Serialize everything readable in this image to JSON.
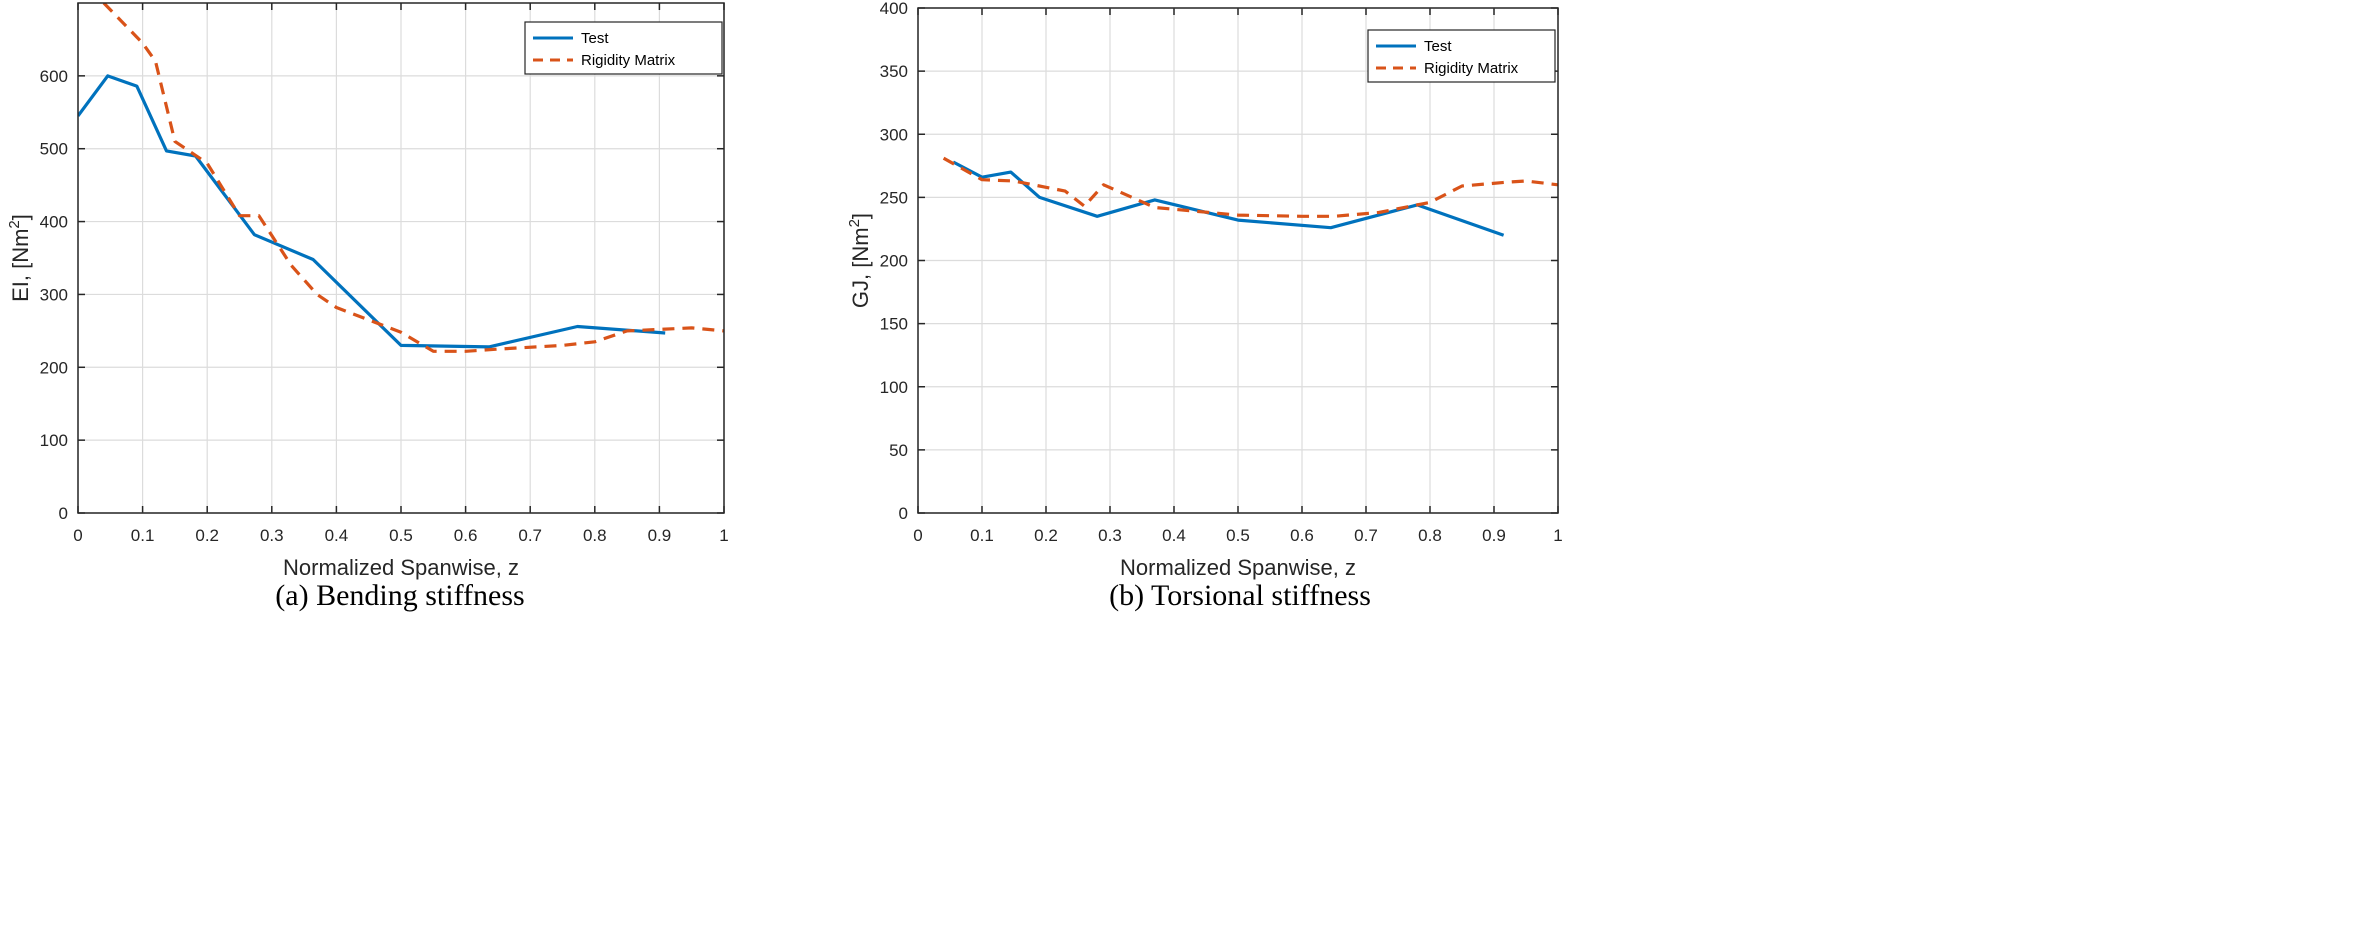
{
  "chart_data": [
    {
      "type": "line",
      "caption": "(a) Bending stiffness",
      "xlabel": "Normalized Spanwise, z",
      "ylabel": "EI, [Nm",
      "ylabel_sup": "2",
      "ylabel_close": "]",
      "xlim": [
        0,
        1
      ],
      "ylim": [
        0,
        700
      ],
      "xticks": [
        "0",
        "0.1",
        "0.2",
        "0.3",
        "0.4",
        "0.5",
        "0.6",
        "0.7",
        "0.8",
        "0.9",
        "1"
      ],
      "yticks": [
        "0",
        "100",
        "200",
        "300",
        "400",
        "500",
        "600"
      ],
      "grid": true,
      "legend": "top-right",
      "series": [
        {
          "name": "Test",
          "color": "#0072BD",
          "style": "solid",
          "x": [
            0,
            0.046,
            0.091,
            0.137,
            0.182,
            0.273,
            0.364,
            0.5,
            0.636,
            0.773,
            0.909
          ],
          "y": [
            545,
            600,
            586,
            497,
            490,
            382,
            348,
            230,
            228,
            256,
            247
          ]
        },
        {
          "name": "Rigidity Matrix",
          "color": "#D95319",
          "style": "dashed",
          "x": [
            0.04,
            0.1,
            0.12,
            0.15,
            0.2,
            0.25,
            0.28,
            0.33,
            0.37,
            0.4,
            0.5,
            0.55,
            0.6,
            0.65,
            0.75,
            0.8,
            0.85,
            0.9,
            0.95,
            1.0
          ],
          "y": [
            700,
            645,
            620,
            510,
            480,
            408,
            408,
            340,
            300,
            282,
            248,
            222,
            222,
            225,
            230,
            235,
            250,
            252,
            254,
            250
          ]
        }
      ]
    },
    {
      "type": "line",
      "caption": "(b) Torsional stiffness",
      "xlabel": "Normalized Spanwise, z",
      "ylabel": "GJ, [Nm",
      "ylabel_sup": "2",
      "ylabel_close": "]",
      "xlim": [
        0,
        1
      ],
      "ylim": [
        0,
        400
      ],
      "xticks": [
        "0",
        "0.1",
        "0.2",
        "0.3",
        "0.4",
        "0.5",
        "0.6",
        "0.7",
        "0.8",
        "0.9",
        "1"
      ],
      "yticks": [
        "0",
        "50",
        "100",
        "150",
        "200",
        "250",
        "300",
        "350",
        "400"
      ],
      "grid": true,
      "legend": "top-right",
      "series": [
        {
          "name": "Test",
          "color": "#0072BD",
          "style": "solid",
          "x": [
            0.055,
            0.1,
            0.145,
            0.19,
            0.28,
            0.37,
            0.5,
            0.645,
            0.78,
            0.915
          ],
          "y": [
            278,
            266,
            270,
            250,
            235,
            248,
            232,
            226,
            244,
            220
          ]
        },
        {
          "name": "Rigidity Matrix",
          "color": "#D95319",
          "style": "dashed",
          "x": [
            0.04,
            0.1,
            0.15,
            0.2,
            0.23,
            0.26,
            0.29,
            0.37,
            0.5,
            0.6,
            0.65,
            0.72,
            0.8,
            0.85,
            0.92,
            0.95,
            1.0
          ],
          "y": [
            281,
            264,
            263,
            258,
            255,
            243,
            260,
            242,
            236,
            235,
            235,
            238,
            246,
            259,
            262,
            263,
            260
          ]
        }
      ]
    }
  ]
}
